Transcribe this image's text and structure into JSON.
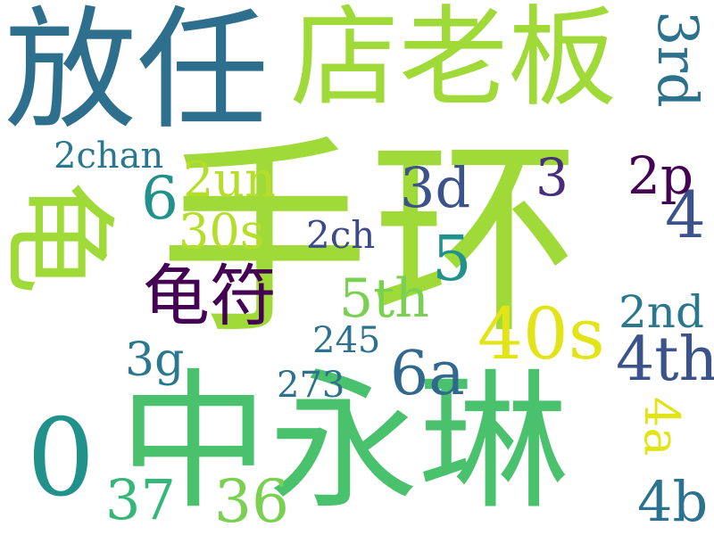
{
  "words": [
    {
      "id": "shouhuan",
      "text": "手环",
      "color": "#a0da39"
    },
    {
      "id": "zhongyonglin",
      "text": "中永琳",
      "color": "#4ac16d"
    },
    {
      "id": "dianlaoban",
      "text": "店老板",
      "color": "#a0da39"
    },
    {
      "id": "fangren",
      "text": "放任",
      "color": "#2e6f8e"
    },
    {
      "id": "guilie",
      "text": "龟裂",
      "color": "#a0da39"
    },
    {
      "id": "guifu",
      "text": "龟符",
      "color": "#440154"
    },
    {
      "id": "num-0",
      "text": "0",
      "color": "#21918c"
    },
    {
      "id": "num-40s",
      "text": "40s",
      "color": "#e2e418"
    },
    {
      "id": "num-4th",
      "text": "4th",
      "color": "#3b528b"
    },
    {
      "id": "num-4b",
      "text": "4b",
      "color": "#2c728e"
    },
    {
      "id": "num-3rd",
      "text": "3rd",
      "color": "#2c728e"
    },
    {
      "id": "num-6a",
      "text": "6a",
      "color": "#31688e"
    },
    {
      "id": "num-36",
      "text": "36",
      "color": "#7ad151"
    },
    {
      "id": "num-37",
      "text": "37",
      "color": "#35b779"
    },
    {
      "id": "num-5th",
      "text": "5th",
      "color": "#7ad151"
    },
    {
      "id": "num-4",
      "text": "4",
      "color": "#3b528b"
    },
    {
      "id": "num-3d",
      "text": "3d",
      "color": "#3b528b"
    },
    {
      "id": "num-2p",
      "text": "2p",
      "color": "#440154"
    },
    {
      "id": "num-2nd",
      "text": "2nd",
      "color": "#2a788e"
    },
    {
      "id": "num-3g",
      "text": "3g",
      "color": "#2a788e"
    },
    {
      "id": "num-4a",
      "text": "4a",
      "color": "#e2e418"
    },
    {
      "id": "num-6",
      "text": "6",
      "color": "#21918c"
    },
    {
      "id": "num-5",
      "text": "5",
      "color": "#21918c"
    },
    {
      "id": "num-3",
      "text": "3",
      "color": "#472d7b"
    },
    {
      "id": "num-2un",
      "text": "2un",
      "color": "#b5de2b"
    },
    {
      "id": "num-30s",
      "text": "30s",
      "color": "#b5de2b"
    },
    {
      "id": "num-2chan",
      "text": "2chan",
      "color": "#2a788e"
    },
    {
      "id": "num-2ch",
      "text": "2ch",
      "color": "#3e4989"
    },
    {
      "id": "num-245",
      "text": "245",
      "color": "#2c728e"
    },
    {
      "id": "num-273",
      "text": "273",
      "color": "#2c728e"
    }
  ]
}
